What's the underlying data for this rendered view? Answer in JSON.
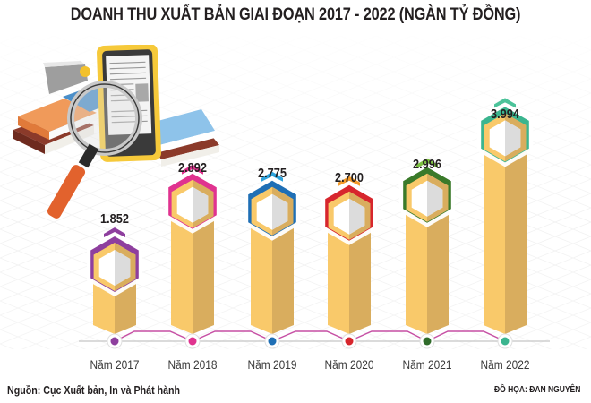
{
  "title": "DOANH THU XUẤT BẢN GIAI ĐOẠN 2017 - 2022 (NGÀN TỶ ĐỒNG)",
  "source": "Nguồn: Cục Xuất bản, In và Phát hành",
  "credit": "ĐỒ HỌA: ĐAN NGUYÊN",
  "illustration": "books-tablet-magnifier-icon",
  "bars": [
    {
      "year": "Năm 2017",
      "value": "1.852",
      "accent": "#8e3f9e",
      "dot": "#8e3f9e",
      "tip": "#8e3f9e"
    },
    {
      "year": "Năm 2018",
      "value": "2.892",
      "accent": "#e0338f",
      "dot": "#e0338f",
      "tip": "#e0338f"
    },
    {
      "year": "Năm 2019",
      "value": "2.775",
      "accent": "#1f6fb5",
      "dot": "#1f6fb5",
      "tip": "#2ea3dc"
    },
    {
      "year": "Năm 2020",
      "value": "2.700",
      "accent": "#d7262d",
      "dot": "#d7262d",
      "tip": "#f39a2a"
    },
    {
      "year": "Năm 2021",
      "value": "2.996",
      "accent": "#3a7a2a",
      "dot": "#2f6b2a",
      "tip": "#7cc042"
    },
    {
      "year": "Năm 2022",
      "value": "3.994",
      "accent": "#3bb58f",
      "dot": "#3bb58f",
      "tip": "#4cc39a"
    }
  ],
  "colors": {
    "bar_light": "#f9c96a",
    "bar_dark": "#d9ad5e",
    "baseline": "#cccccc",
    "hex_white": "#ffffff",
    "hex_shade": "#dcdcdc"
  },
  "chart_data": {
    "type": "bar",
    "title": "DOANH THU XUẤT BẢN GIAI ĐOẠN 2017 - 2022 (NGÀN TỶ ĐỒNG)",
    "categories": [
      "Năm 2017",
      "Năm 2018",
      "Năm 2019",
      "Năm 2020",
      "Năm 2021",
      "Năm 2022"
    ],
    "values": [
      1.852,
      2.892,
      2.775,
      2.7,
      2.996,
      3.994
    ],
    "value_labels": [
      "1.852",
      "2.892",
      "2.775",
      "2.700",
      "2.996",
      "3.994"
    ],
    "unit": "Ngàn tỷ đồng",
    "xlabel": "",
    "ylabel": "",
    "grid": false,
    "legend": null,
    "annotations": [
      "Nguồn: Cục Xuất bản, In và Phát hành",
      "ĐỒ HỌA: ĐAN NGUYÊN"
    ]
  }
}
